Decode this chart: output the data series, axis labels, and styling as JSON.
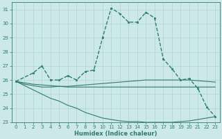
{
  "xlabel": "Humidex (Indice chaleur)",
  "background_color": "#cce8e8",
  "grid_color": "#aad4d4",
  "line_color": "#2e7d6e",
  "xlim": [
    -0.5,
    23.5
  ],
  "ylim": [
    23,
    31.5
  ],
  "yticks": [
    23,
    24,
    25,
    26,
    27,
    28,
    29,
    30,
    31
  ],
  "xticks": [
    0,
    1,
    2,
    3,
    4,
    5,
    6,
    7,
    8,
    9,
    10,
    11,
    12,
    13,
    14,
    15,
    16,
    17,
    18,
    19,
    20,
    21,
    22,
    23
  ],
  "series": [
    {
      "x": [
        0,
        2,
        3,
        4,
        5,
        6,
        7,
        8,
        9,
        10,
        11,
        12,
        13,
        14,
        15,
        16,
        17,
        18,
        19,
        20,
        21,
        22,
        23
      ],
      "y": [
        25.9,
        26.5,
        27.0,
        26.0,
        26.0,
        26.3,
        26.0,
        26.6,
        26.7,
        29.0,
        31.1,
        30.7,
        30.1,
        30.1,
        30.8,
        30.4,
        27.5,
        26.8,
        26.0,
        26.1,
        25.4,
        24.1,
        23.4
      ],
      "marker": "s",
      "markersize": 2.0,
      "linewidth": 1.0,
      "linestyle": "--"
    },
    {
      "x": [
        0,
        1,
        2,
        3,
        4,
        5,
        6,
        7,
        8,
        9,
        10,
        11,
        12,
        13,
        14,
        15,
        16,
        17,
        18,
        19,
        20,
        21,
        22,
        23
      ],
      "y": [
        25.9,
        25.7,
        25.6,
        25.5,
        25.5,
        25.55,
        25.55,
        25.6,
        25.65,
        25.7,
        25.75,
        25.8,
        25.85,
        25.9,
        25.95,
        26.0,
        26.0,
        26.0,
        26.0,
        26.0,
        26.0,
        25.95,
        25.9,
        25.85
      ],
      "marker": null,
      "markersize": 0,
      "linewidth": 0.8,
      "linestyle": "-"
    },
    {
      "x": [
        0,
        1,
        2,
        3,
        4,
        5,
        6,
        7,
        8,
        9,
        10,
        11,
        12,
        13,
        14,
        15,
        16,
        17,
        18,
        19,
        20,
        21,
        22,
        23
      ],
      "y": [
        25.9,
        25.8,
        25.7,
        25.65,
        25.6,
        25.55,
        25.5,
        25.5,
        25.5,
        25.5,
        25.5,
        25.5,
        25.5,
        25.5,
        25.5,
        25.5,
        25.5,
        25.5,
        25.5,
        25.5,
        25.5,
        25.5,
        25.5,
        25.5
      ],
      "marker": null,
      "markersize": 0,
      "linewidth": 0.8,
      "linestyle": "-"
    },
    {
      "x": [
        0,
        1,
        2,
        3,
        4,
        5,
        6,
        7,
        8,
        9,
        10,
        11,
        12,
        13,
        14,
        15,
        16,
        17,
        18,
        19,
        20,
        21,
        22,
        23
      ],
      "y": [
        25.9,
        25.6,
        25.3,
        25.0,
        24.7,
        24.5,
        24.2,
        24.0,
        23.7,
        23.5,
        23.3,
        23.2,
        23.1,
        23.05,
        23.05,
        23.0,
        23.0,
        23.0,
        23.0,
        23.05,
        23.1,
        23.2,
        23.3,
        23.4
      ],
      "marker": null,
      "markersize": 0,
      "linewidth": 0.8,
      "linestyle": "-"
    }
  ]
}
